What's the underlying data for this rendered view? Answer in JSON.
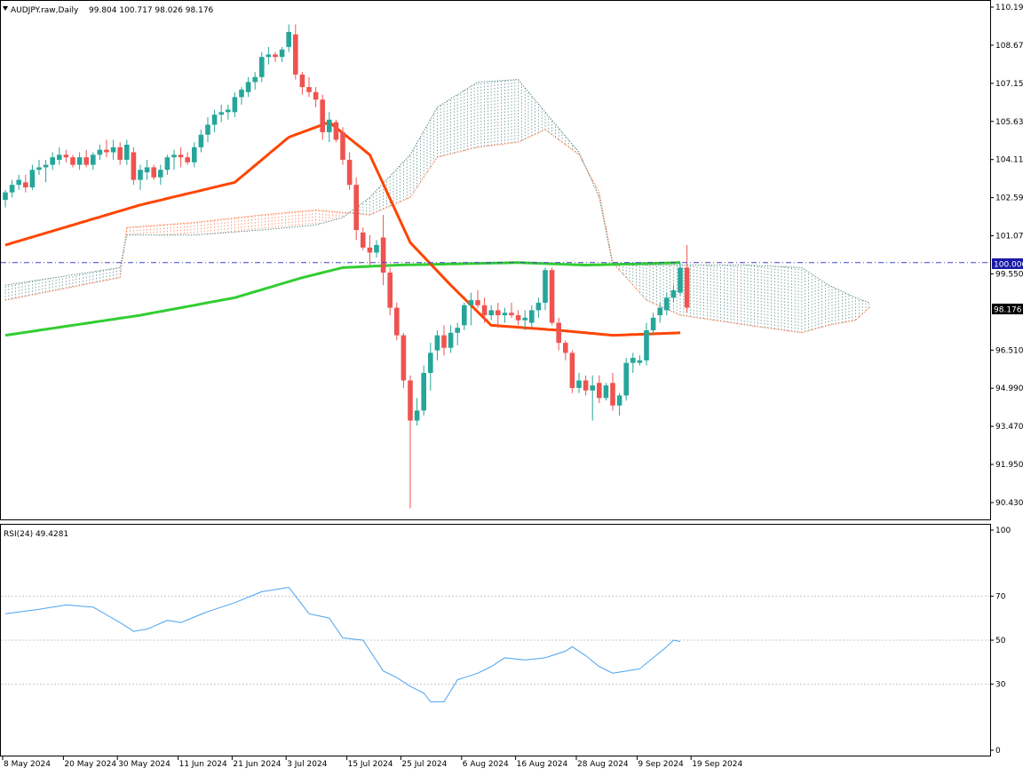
{
  "header": {
    "symbol_label": "AUDJPY.raw,Daily",
    "ohlc": "99.804 100.717 98.026 98.176"
  },
  "rsi_header": {
    "label": "RSI(24) 49.4281"
  },
  "colors": {
    "bull": "#26a69a",
    "bear": "#ef5350",
    "ma_fast": "#ff4500",
    "ma_slow": "#32cd32",
    "cloud_bull": "#5f8f8b",
    "cloud_bear": "#ff7f50",
    "rsi": "#4aa3f0",
    "hline": "#4040c0",
    "grid": "#c8c8c8"
  },
  "price_axis": {
    "ticks": [
      "110.190",
      "108.670",
      "107.150",
      "105.630",
      "104.110",
      "102.590",
      "101.070",
      "99.550",
      "96.510",
      "94.990",
      "93.470",
      "91.950",
      "90.430"
    ],
    "hline_label": "100.000",
    "current_label": "98.176"
  },
  "rsi_axis": {
    "ticks": [
      "100",
      "70",
      "50",
      "30",
      "0"
    ]
  },
  "date_axis": {
    "ticks": [
      "8 May 2024",
      "20 May 2024",
      "30 May 2024",
      "11 Jun 2024",
      "21 Jun 2024",
      "3 Jul 2024",
      "15 Jul 2024",
      "25 Jul 2024",
      "6 Aug 2024",
      "16 Aug 2024",
      "28 Aug 2024",
      "9 Sep 2024",
      "19 Sep 2024"
    ]
  },
  "chart_data": {
    "type": "candlestick",
    "ylim": [
      89.8,
      110.5
    ],
    "hline": 100.0,
    "candles": [
      {
        "o": 102.5,
        "h": 102.9,
        "l": 102.2,
        "c": 102.8
      },
      {
        "o": 102.8,
        "h": 103.3,
        "l": 102.6,
        "c": 103.1
      },
      {
        "o": 103.1,
        "h": 103.5,
        "l": 102.9,
        "c": 103.3
      },
      {
        "o": 103.2,
        "h": 103.5,
        "l": 102.8,
        "c": 103.0
      },
      {
        "o": 103.0,
        "h": 103.9,
        "l": 102.9,
        "c": 103.7
      },
      {
        "o": 103.7,
        "h": 104.1,
        "l": 103.5,
        "c": 103.8
      },
      {
        "o": 103.8,
        "h": 104.1,
        "l": 103.2,
        "c": 103.9
      },
      {
        "o": 103.9,
        "h": 104.4,
        "l": 103.7,
        "c": 104.2
      },
      {
        "o": 104.1,
        "h": 104.6,
        "l": 103.9,
        "c": 104.3
      },
      {
        "o": 104.3,
        "h": 104.5,
        "l": 104.0,
        "c": 104.2
      },
      {
        "o": 104.2,
        "h": 104.3,
        "l": 103.8,
        "c": 103.9
      },
      {
        "o": 103.9,
        "h": 104.4,
        "l": 103.7,
        "c": 104.2
      },
      {
        "o": 104.2,
        "h": 104.5,
        "l": 103.8,
        "c": 103.9
      },
      {
        "o": 103.9,
        "h": 104.4,
        "l": 103.7,
        "c": 104.3
      },
      {
        "o": 104.3,
        "h": 104.7,
        "l": 104.1,
        "c": 104.5
      },
      {
        "o": 104.5,
        "h": 104.9,
        "l": 104.2,
        "c": 104.4
      },
      {
        "o": 104.4,
        "h": 104.9,
        "l": 104.1,
        "c": 104.6
      },
      {
        "o": 104.6,
        "h": 104.8,
        "l": 103.9,
        "c": 104.1
      },
      {
        "o": 104.1,
        "h": 104.9,
        "l": 103.9,
        "c": 104.7
      },
      {
        "o": 104.4,
        "h": 104.6,
        "l": 103.1,
        "c": 103.3
      },
      {
        "o": 103.3,
        "h": 103.9,
        "l": 102.9,
        "c": 103.7
      },
      {
        "o": 103.6,
        "h": 104.1,
        "l": 103.3,
        "c": 103.8
      },
      {
        "o": 103.8,
        "h": 103.9,
        "l": 103.3,
        "c": 103.4
      },
      {
        "o": 103.4,
        "h": 103.9,
        "l": 103.1,
        "c": 103.7
      },
      {
        "o": 103.7,
        "h": 104.3,
        "l": 103.5,
        "c": 104.2
      },
      {
        "o": 104.2,
        "h": 104.5,
        "l": 103.7,
        "c": 104.3
      },
      {
        "o": 104.3,
        "h": 104.6,
        "l": 103.8,
        "c": 104.2
      },
      {
        "o": 104.2,
        "h": 104.4,
        "l": 103.9,
        "c": 104.0
      },
      {
        "o": 104.0,
        "h": 104.8,
        "l": 103.8,
        "c": 104.6
      },
      {
        "o": 104.6,
        "h": 105.3,
        "l": 104.4,
        "c": 105.1
      },
      {
        "o": 105.1,
        "h": 105.8,
        "l": 104.8,
        "c": 105.5
      },
      {
        "o": 105.5,
        "h": 106.1,
        "l": 105.2,
        "c": 105.9
      },
      {
        "o": 105.9,
        "h": 106.3,
        "l": 105.6,
        "c": 106.0
      },
      {
        "o": 106.0,
        "h": 106.3,
        "l": 105.7,
        "c": 106.1
      },
      {
        "o": 106.0,
        "h": 106.8,
        "l": 105.8,
        "c": 106.6
      },
      {
        "o": 106.6,
        "h": 107.0,
        "l": 106.3,
        "c": 106.9
      },
      {
        "o": 106.8,
        "h": 107.4,
        "l": 106.6,
        "c": 107.2
      },
      {
        "o": 107.2,
        "h": 107.6,
        "l": 106.9,
        "c": 107.4
      },
      {
        "o": 107.4,
        "h": 108.4,
        "l": 107.2,
        "c": 108.2
      },
      {
        "o": 108.2,
        "h": 108.6,
        "l": 107.9,
        "c": 108.3
      },
      {
        "o": 108.3,
        "h": 108.4,
        "l": 108.0,
        "c": 108.2
      },
      {
        "o": 108.2,
        "h": 108.6,
        "l": 108.0,
        "c": 108.5
      },
      {
        "o": 108.6,
        "h": 109.5,
        "l": 108.4,
        "c": 109.2
      },
      {
        "o": 109.1,
        "h": 109.5,
        "l": 107.3,
        "c": 107.5
      },
      {
        "o": 107.5,
        "h": 107.6,
        "l": 106.7,
        "c": 107.0
      },
      {
        "o": 107.0,
        "h": 107.4,
        "l": 106.6,
        "c": 106.8
      },
      {
        "o": 106.8,
        "h": 107.0,
        "l": 106.2,
        "c": 106.5
      },
      {
        "o": 106.5,
        "h": 106.7,
        "l": 104.9,
        "c": 105.2
      },
      {
        "o": 105.2,
        "h": 106.0,
        "l": 104.8,
        "c": 105.7
      },
      {
        "o": 105.6,
        "h": 105.7,
        "l": 104.8,
        "c": 104.9
      },
      {
        "o": 105.2,
        "h": 105.4,
        "l": 103.9,
        "c": 104.1
      },
      {
        "o": 104.1,
        "h": 104.4,
        "l": 102.9,
        "c": 103.1
      },
      {
        "o": 103.1,
        "h": 103.4,
        "l": 100.9,
        "c": 101.3
      },
      {
        "o": 101.2,
        "h": 101.4,
        "l": 100.5,
        "c": 100.6
      },
      {
        "o": 100.6,
        "h": 101.1,
        "l": 99.9,
        "c": 100.4
      },
      {
        "o": 100.4,
        "h": 100.9,
        "l": 100.2,
        "c": 100.7
      },
      {
        "o": 101.0,
        "h": 101.9,
        "l": 99.1,
        "c": 99.6
      },
      {
        "o": 99.6,
        "h": 99.8,
        "l": 97.9,
        "c": 98.2
      },
      {
        "o": 98.2,
        "h": 98.4,
        "l": 96.9,
        "c": 97.1
      },
      {
        "o": 97.1,
        "h": 97.2,
        "l": 95.0,
        "c": 95.3
      },
      {
        "o": 95.3,
        "h": 95.5,
        "l": 90.2,
        "c": 93.7
      },
      {
        "o": 93.7,
        "h": 94.6,
        "l": 93.5,
        "c": 94.1
      },
      {
        "o": 94.1,
        "h": 95.9,
        "l": 93.9,
        "c": 95.6
      },
      {
        "o": 95.6,
        "h": 96.8,
        "l": 94.9,
        "c": 96.4
      },
      {
        "o": 96.5,
        "h": 97.3,
        "l": 96.1,
        "c": 97.1
      },
      {
        "o": 97.1,
        "h": 97.5,
        "l": 96.3,
        "c": 96.6
      },
      {
        "o": 96.6,
        "h": 97.5,
        "l": 96.4,
        "c": 97.2
      },
      {
        "o": 97.2,
        "h": 97.6,
        "l": 96.7,
        "c": 97.4
      },
      {
        "o": 97.5,
        "h": 98.4,
        "l": 97.3,
        "c": 98.3
      },
      {
        "o": 98.3,
        "h": 98.8,
        "l": 97.5,
        "c": 98.5
      },
      {
        "o": 98.5,
        "h": 98.9,
        "l": 98.2,
        "c": 98.3
      },
      {
        "o": 98.3,
        "h": 98.6,
        "l": 97.6,
        "c": 97.9
      },
      {
        "o": 97.9,
        "h": 98.3,
        "l": 97.7,
        "c": 98.1
      },
      {
        "o": 98.1,
        "h": 98.4,
        "l": 97.4,
        "c": 97.9
      },
      {
        "o": 97.9,
        "h": 98.2,
        "l": 97.6,
        "c": 98.0
      },
      {
        "o": 98.0,
        "h": 98.4,
        "l": 97.8,
        "c": 97.9
      },
      {
        "o": 97.9,
        "h": 98.1,
        "l": 97.5,
        "c": 97.7
      },
      {
        "o": 97.7,
        "h": 98.1,
        "l": 97.3,
        "c": 97.8
      },
      {
        "o": 97.6,
        "h": 98.3,
        "l": 97.4,
        "c": 98.1
      },
      {
        "o": 98.1,
        "h": 98.6,
        "l": 97.8,
        "c": 98.4
      },
      {
        "o": 98.4,
        "h": 99.8,
        "l": 98.1,
        "c": 99.7
      },
      {
        "o": 99.7,
        "h": 99.8,
        "l": 97.5,
        "c": 97.6
      },
      {
        "o": 97.6,
        "h": 97.8,
        "l": 96.5,
        "c": 96.8
      },
      {
        "o": 96.8,
        "h": 96.9,
        "l": 96.1,
        "c": 96.4
      },
      {
        "o": 96.4,
        "h": 96.5,
        "l": 94.8,
        "c": 95.0
      },
      {
        "o": 95.0,
        "h": 95.6,
        "l": 94.8,
        "c": 95.3
      },
      {
        "o": 95.3,
        "h": 95.5,
        "l": 94.7,
        "c": 94.9
      },
      {
        "o": 94.9,
        "h": 95.5,
        "l": 93.7,
        "c": 95.1
      },
      {
        "o": 95.2,
        "h": 95.5,
        "l": 94.4,
        "c": 94.6
      },
      {
        "o": 94.6,
        "h": 95.2,
        "l": 94.5,
        "c": 95.1
      },
      {
        "o": 95.2,
        "h": 95.6,
        "l": 94.1,
        "c": 94.3
      },
      {
        "o": 94.3,
        "h": 94.8,
        "l": 93.9,
        "c": 94.7
      },
      {
        "o": 94.7,
        "h": 96.2,
        "l": 94.5,
        "c": 96.0
      },
      {
        "o": 96.0,
        "h": 96.4,
        "l": 95.6,
        "c": 96.2
      },
      {
        "o": 96.0,
        "h": 96.3,
        "l": 95.9,
        "c": 96.1
      },
      {
        "o": 96.1,
        "h": 97.6,
        "l": 95.9,
        "c": 97.3
      },
      {
        "o": 97.3,
        "h": 98.0,
        "l": 97.1,
        "c": 97.8
      },
      {
        "o": 97.9,
        "h": 98.4,
        "l": 97.6,
        "c": 98.2
      },
      {
        "o": 98.1,
        "h": 98.8,
        "l": 97.9,
        "c": 98.6
      },
      {
        "o": 98.6,
        "h": 99.1,
        "l": 98.4,
        "c": 98.9
      },
      {
        "o": 98.8,
        "h": 100.0,
        "l": 98.7,
        "c": 99.8
      },
      {
        "o": 99.8,
        "h": 100.7,
        "l": 98.0,
        "c": 98.2
      }
    ],
    "ma_fast": [
      [
        0,
        100.7
      ],
      [
        20,
        102.3
      ],
      [
        34,
        103.2
      ],
      [
        42,
        105.0
      ],
      [
        48,
        105.6
      ],
      [
        54,
        104.3
      ],
      [
        60,
        100.8
      ],
      [
        66,
        99.1
      ],
      [
        72,
        97.5
      ],
      [
        82,
        97.3
      ],
      [
        90,
        97.1
      ],
      [
        100,
        97.2
      ]
    ],
    "ma_slow": [
      [
        0,
        97.1
      ],
      [
        20,
        97.9
      ],
      [
        34,
        98.6
      ],
      [
        44,
        99.4
      ],
      [
        50,
        99.8
      ],
      [
        58,
        99.9
      ],
      [
        76,
        100.0
      ],
      [
        86,
        99.9
      ],
      [
        100,
        100.0
      ]
    ],
    "cloud_spanA": [
      [
        0,
        98.5
      ],
      [
        17,
        99.4
      ],
      [
        18,
        101.4
      ],
      [
        28,
        101.6
      ],
      [
        38,
        101.9
      ],
      [
        46,
        102.1
      ],
      [
        50,
        102.0
      ],
      [
        54,
        101.9
      ],
      [
        60,
        102.6
      ],
      [
        64,
        104.2
      ],
      [
        70,
        104.6
      ],
      [
        76,
        104.8
      ],
      [
        80,
        105.3
      ],
      [
        85,
        104.3
      ],
      [
        88,
        102.8
      ],
      [
        90,
        100.0
      ],
      [
        95,
        98.5
      ],
      [
        100,
        97.9
      ],
      [
        110,
        97.5
      ],
      [
        118,
        97.2
      ],
      [
        122,
        97.5
      ],
      [
        126,
        97.7
      ],
      [
        128,
        98.2
      ]
    ],
    "cloud_spanB": [
      [
        0,
        99.1
      ],
      [
        17,
        99.8
      ],
      [
        18,
        101.1
      ],
      [
        28,
        101.1
      ],
      [
        38,
        101.3
      ],
      [
        46,
        101.5
      ],
      [
        50,
        101.8
      ],
      [
        54,
        102.6
      ],
      [
        60,
        104.3
      ],
      [
        64,
        106.2
      ],
      [
        70,
        107.2
      ],
      [
        76,
        107.3
      ],
      [
        80,
        106.0
      ],
      [
        85,
        104.4
      ],
      [
        88,
        102.6
      ],
      [
        90,
        99.9
      ],
      [
        95,
        99.9
      ],
      [
        100,
        99.9
      ],
      [
        110,
        99.9
      ],
      [
        118,
        99.8
      ],
      [
        122,
        99.1
      ],
      [
        126,
        98.6
      ],
      [
        128,
        98.4
      ]
    ],
    "rsi": {
      "ylim": [
        0,
        100
      ],
      "levels": [
        70,
        50,
        30
      ],
      "values": [
        [
          0,
          62
        ],
        [
          5,
          64
        ],
        [
          9,
          66
        ],
        [
          13,
          65
        ],
        [
          17,
          58
        ],
        [
          19,
          54
        ],
        [
          21,
          55
        ],
        [
          24,
          59
        ],
        [
          26,
          58
        ],
        [
          30,
          63
        ],
        [
          34,
          67
        ],
        [
          38,
          72
        ],
        [
          42,
          74
        ],
        [
          45,
          62
        ],
        [
          48,
          60
        ],
        [
          50,
          51
        ],
        [
          53,
          50
        ],
        [
          56,
          36
        ],
        [
          58,
          33
        ],
        [
          60,
          29
        ],
        [
          62,
          26
        ],
        [
          63,
          22
        ],
        [
          65,
          22
        ],
        [
          67,
          32
        ],
        [
          70,
          35
        ],
        [
          72,
          38
        ],
        [
          74,
          42
        ],
        [
          77,
          41
        ],
        [
          80,
          42
        ],
        [
          83,
          45
        ],
        [
          84,
          47
        ],
        [
          86,
          43
        ],
        [
          88,
          38
        ],
        [
          90,
          35
        ],
        [
          92,
          36
        ],
        [
          94,
          37
        ],
        [
          96,
          42
        ],
        [
          98,
          47
        ],
        [
          99,
          50
        ],
        [
          100,
          49.4
        ]
      ]
    }
  }
}
